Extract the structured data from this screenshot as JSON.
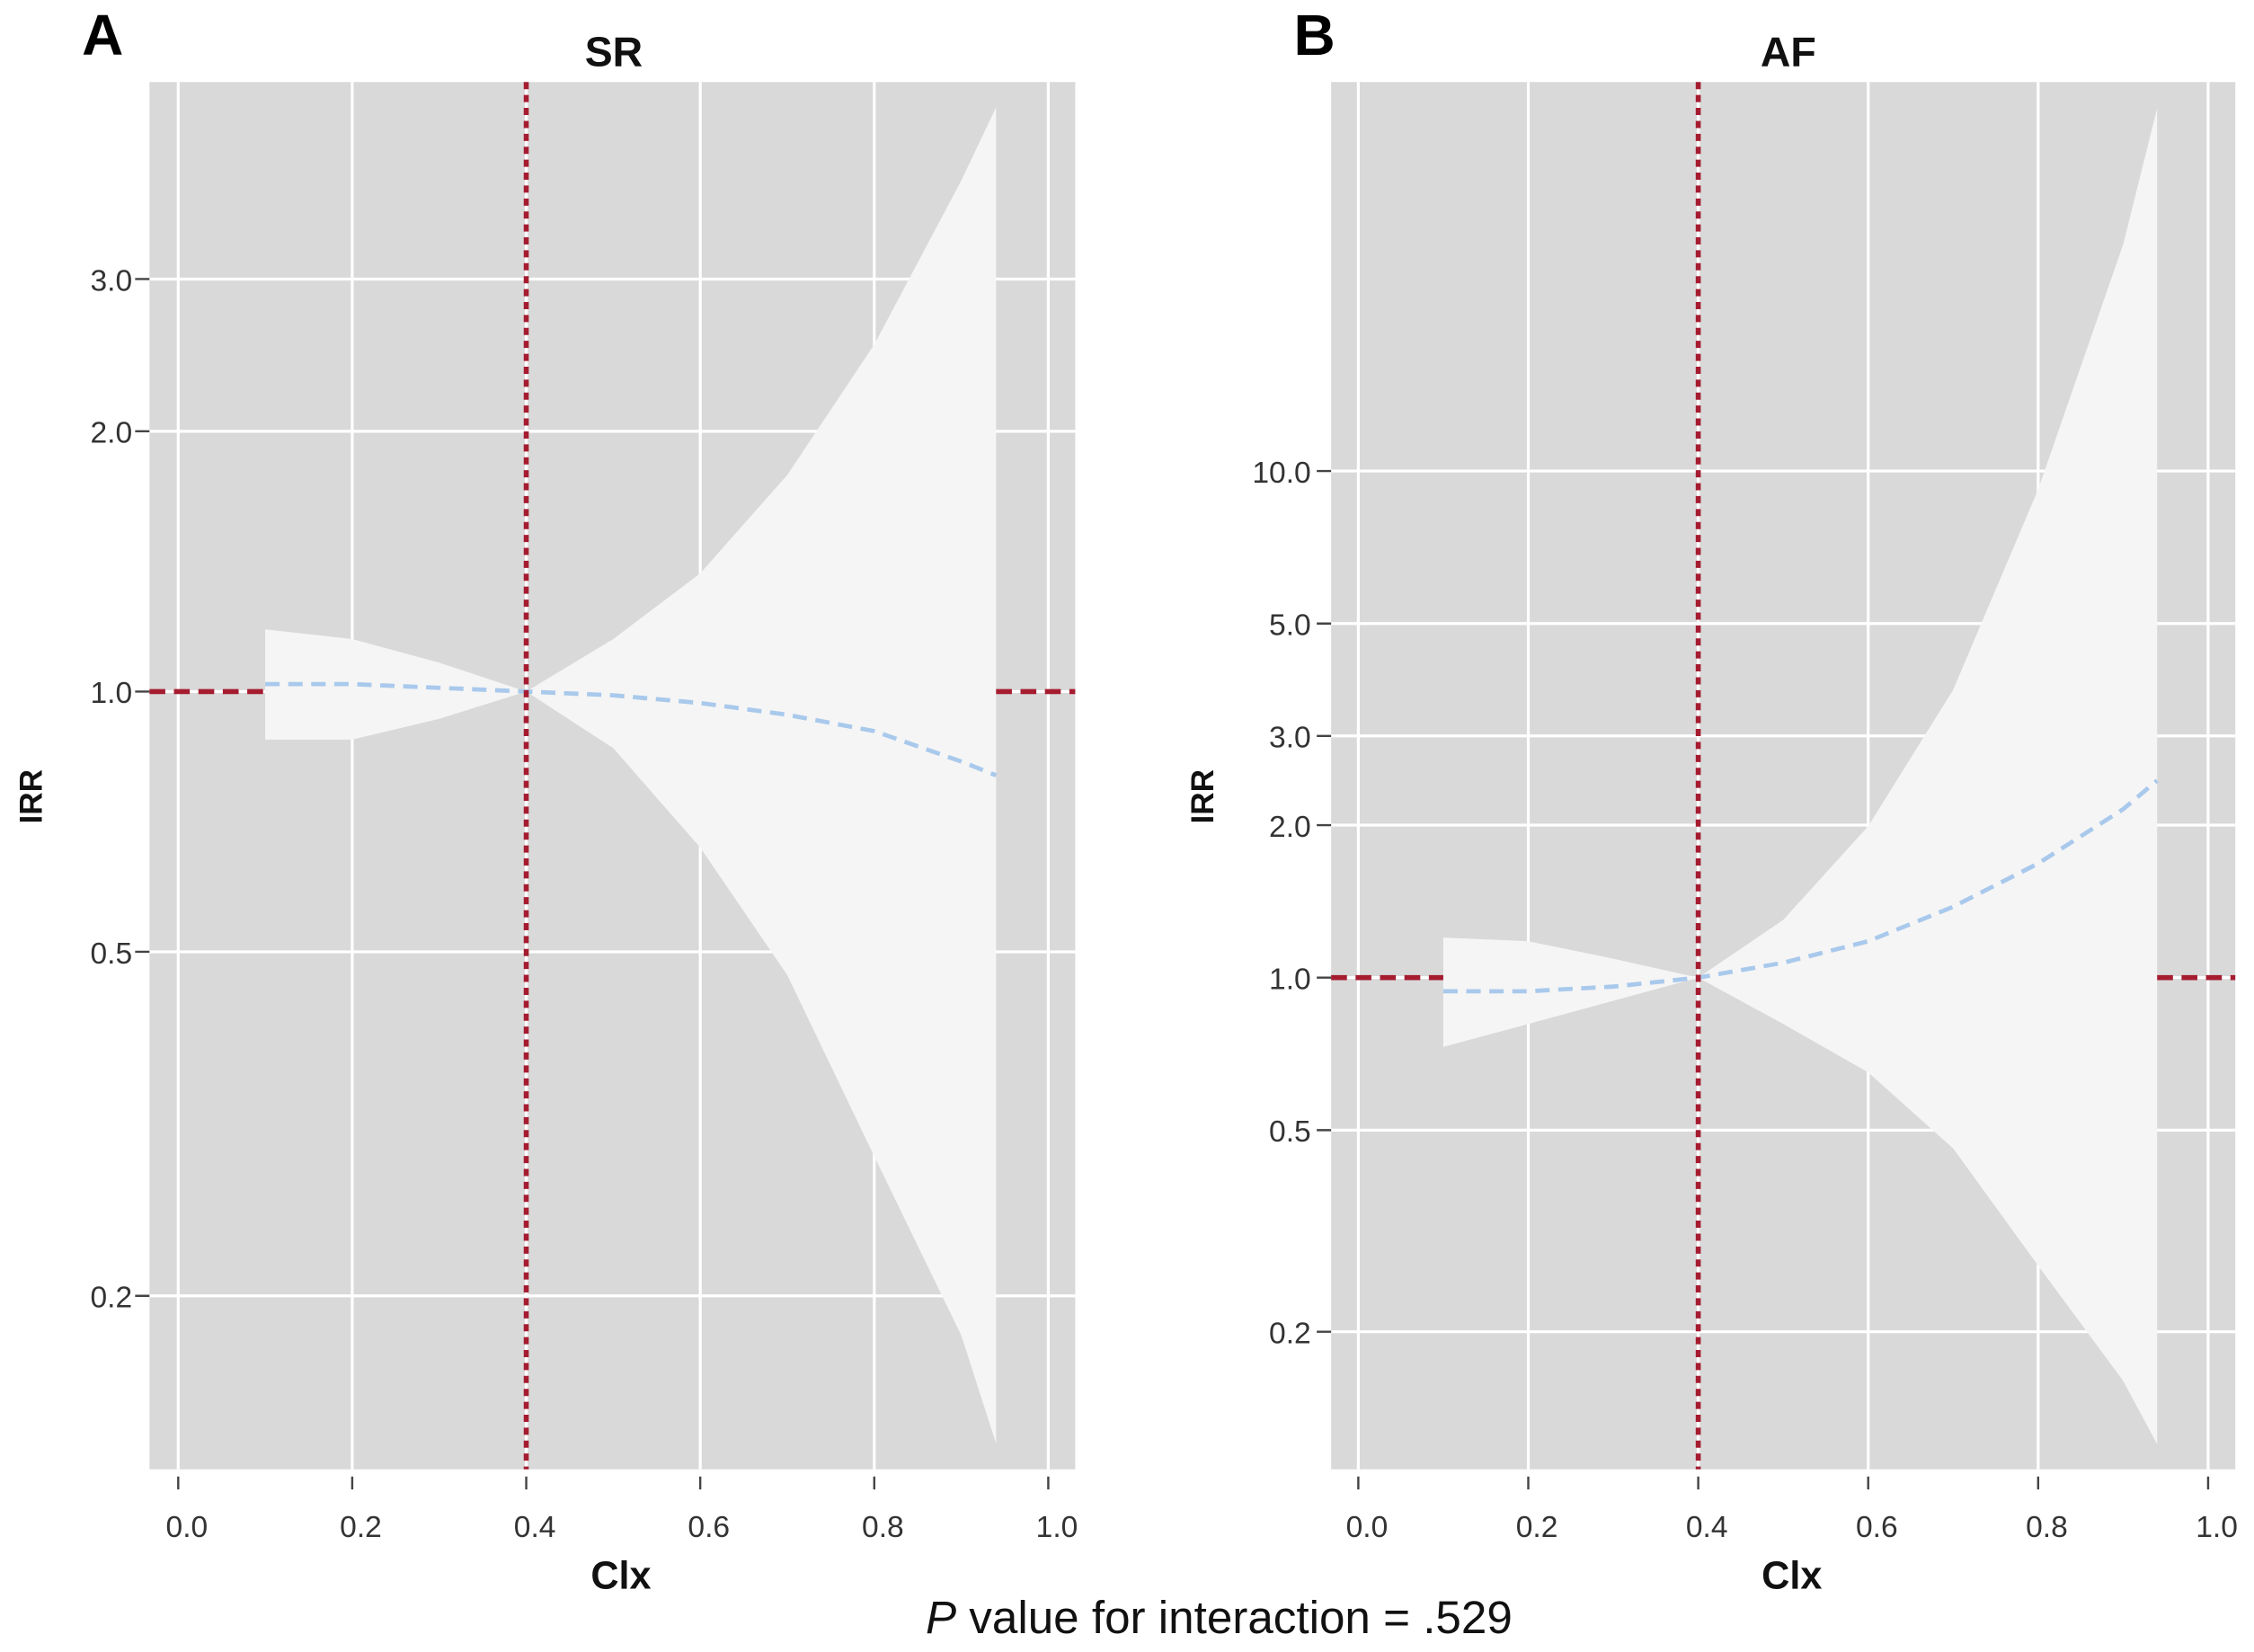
{
  "footnote": {
    "prefix": "P",
    "text": " value for interaction = .529"
  },
  "colors": {
    "panel_bg": "#d9d9d9",
    "band": "#f5f5f5",
    "grid": "#ffffff",
    "reference": "#a51c30",
    "estimate": "#a9c9ec"
  },
  "chart_data": [
    {
      "type": "area",
      "panel_label": "A",
      "title": "SR",
      "xlabel": "Clx",
      "ylabel": "IRR",
      "y_scale": "log",
      "grid": true,
      "xlim": [
        -0.033,
        1.031
      ],
      "ylim": [
        0.126,
        5.07
      ],
      "x_ticks": [
        "0.0",
        "0.2",
        "0.4",
        "0.6",
        "0.8",
        "1.0"
      ],
      "x_tick_values": [
        0,
        0.2,
        0.4,
        0.6,
        0.8,
        1.0
      ],
      "y_ticks": [
        "0.2",
        "0.5",
        "1.0",
        "2.0",
        "3.0"
      ],
      "y_tick_values": [
        0.2,
        0.5,
        1.0,
        2.0,
        3.0
      ],
      "reference_x": 0.4,
      "reference_y": 1.0,
      "x": [
        0.1,
        0.2,
        0.3,
        0.4,
        0.5,
        0.6,
        0.7,
        0.8,
        0.9,
        0.94
      ],
      "estimate": [
        1.02,
        1.02,
        1.01,
        1.0,
        0.99,
        0.97,
        0.94,
        0.9,
        0.83,
        0.8
      ],
      "lower": [
        0.88,
        0.88,
        0.93,
        1.0,
        0.86,
        0.66,
        0.47,
        0.29,
        0.18,
        0.135
      ],
      "upper": [
        1.18,
        1.15,
        1.08,
        1.0,
        1.15,
        1.37,
        1.78,
        2.52,
        3.9,
        4.74
      ]
    },
    {
      "type": "area",
      "panel_label": "B",
      "title": "AF",
      "xlabel": "Clx",
      "ylabel": "IRR",
      "y_scale": "log",
      "grid": true,
      "xlim": [
        -0.032,
        1.032
      ],
      "ylim": [
        0.107,
        58.6
      ],
      "x_ticks": [
        "0.0",
        "0.2",
        "0.4",
        "0.6",
        "0.8",
        "1.0"
      ],
      "x_tick_values": [
        0,
        0.2,
        0.4,
        0.6,
        0.8,
        1.0
      ],
      "y_ticks": [
        "0.2",
        "0.5",
        "1.0",
        "2.0",
        "3.0",
        "5.0",
        "10.0"
      ],
      "y_tick_values": [
        0.2,
        0.5,
        1.0,
        2.0,
        3.0,
        5.0,
        10.0
      ],
      "reference_x": 0.4,
      "reference_y": 1.0,
      "x": [
        0.1,
        0.2,
        0.3,
        0.4,
        0.5,
        0.6,
        0.7,
        0.8,
        0.9,
        0.94
      ],
      "estimate": [
        0.94,
        0.94,
        0.96,
        1.0,
        1.07,
        1.18,
        1.38,
        1.68,
        2.15,
        2.45
      ],
      "lower": [
        0.73,
        0.81,
        0.9,
        1.0,
        0.81,
        0.65,
        0.46,
        0.27,
        0.16,
        0.12
      ],
      "upper": [
        1.2,
        1.18,
        1.09,
        1.0,
        1.3,
        1.99,
        3.7,
        9.2,
        28,
        52
      ]
    }
  ]
}
